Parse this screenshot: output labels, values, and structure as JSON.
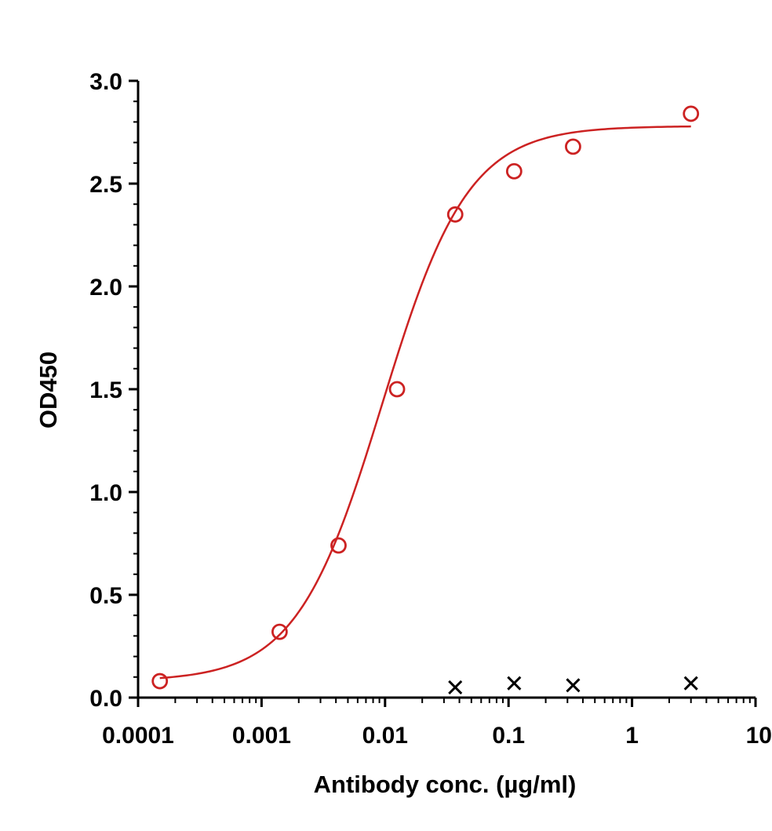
{
  "chart_data": {
    "type": "scatter",
    "xlabel": "Antibody conc. (µg/ml)",
    "ylabel": "OD450",
    "xscale": "log",
    "xlim": [
      0.0001,
      10
    ],
    "ylim": [
      0,
      3.0
    ],
    "x_ticks": [
      "0.0001",
      "0.001",
      "0.01",
      "0.1",
      "1",
      "10"
    ],
    "y_ticks": [
      "0.0",
      "0.5",
      "1.0",
      "1.5",
      "2.0",
      "2.5",
      "3.0"
    ],
    "grid": false,
    "legend": "none",
    "series": [
      {
        "marker": "circle",
        "color": "#cc2222",
        "points": [
          {
            "x": 0.00015,
            "y": 0.08
          },
          {
            "x": 0.0014,
            "y": 0.32
          },
          {
            "x": 0.0042,
            "y": 0.74
          },
          {
            "x": 0.0125,
            "y": 1.5
          },
          {
            "x": 0.037,
            "y": 2.35
          },
          {
            "x": 0.111,
            "y": 2.56
          },
          {
            "x": 0.333,
            "y": 2.68
          },
          {
            "x": 3.0,
            "y": 2.84
          }
        ],
        "fit": {
          "type": "4PL",
          "bottom": 0.08,
          "top": 2.78,
          "ec50": 0.0095,
          "hill": 1.25,
          "x_range": [
            0.00015,
            3.0
          ],
          "color": "#cc2222"
        }
      },
      {
        "marker": "x",
        "color": "#000000",
        "points": [
          {
            "x": 0.037,
            "y": 0.05
          },
          {
            "x": 0.111,
            "y": 0.07
          },
          {
            "x": 0.333,
            "y": 0.06
          },
          {
            "x": 3.0,
            "y": 0.07
          }
        ]
      }
    ]
  }
}
